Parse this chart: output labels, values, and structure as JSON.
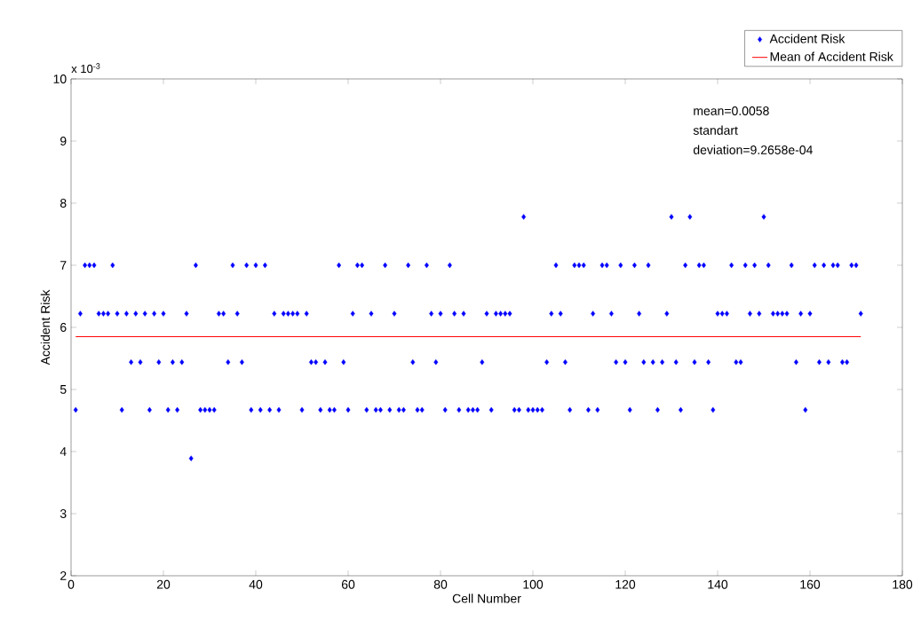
{
  "chart_data": {
    "type": "scatter",
    "xlabel": "Cell Number",
    "ylabel": "Accident Risk",
    "annotations": [
      "x 10$^{-3}$",
      "mean=0.0058",
      "standart",
      "deviation=9.2658e-04"
    ],
    "xlim": [
      0,
      180
    ],
    "xticks": [
      0,
      20,
      40,
      60,
      80,
      100,
      120,
      140,
      160,
      180
    ],
    "ylim": [
      2,
      10
    ],
    "yticks": [
      2,
      3,
      4,
      5,
      6,
      7,
      8,
      9,
      10
    ],
    "legend": "top right",
    "series": [
      {
        "name": "Accident Risk",
        "marker": "diamond",
        "color": "#0000ff",
        "x": [
          1,
          2,
          3,
          4,
          5,
          6,
          7,
          8,
          9,
          10,
          11,
          12,
          13,
          14,
          15,
          16,
          17,
          18,
          19,
          20,
          21,
          22,
          23,
          24,
          25,
          26,
          27,
          28,
          29,
          30,
          31,
          32,
          33,
          34,
          35,
          36,
          37,
          38,
          39,
          40,
          41,
          42,
          43,
          44,
          45,
          46,
          47,
          48,
          49,
          50,
          51,
          52,
          53,
          54,
          55,
          56,
          57,
          58,
          59,
          60,
          61,
          62,
          63,
          64,
          65,
          66,
          67,
          68,
          69,
          70,
          71,
          72,
          73,
          74,
          75,
          76,
          77,
          78,
          79,
          80,
          81,
          82,
          83,
          84,
          85,
          86,
          87,
          88,
          89,
          90,
          91,
          92,
          93,
          94,
          95,
          96,
          97,
          98,
          99,
          100,
          101,
          102,
          103,
          104,
          105,
          106,
          107,
          108,
          109,
          110,
          111,
          112,
          113,
          114,
          115,
          116,
          117,
          118,
          119,
          120,
          121,
          122,
          123,
          124,
          125,
          126,
          127,
          128,
          129,
          130,
          131,
          132,
          133,
          134,
          135,
          136,
          137,
          138,
          139,
          140,
          141,
          142,
          143,
          144,
          145,
          146,
          147,
          148,
          149,
          150,
          151,
          152,
          153,
          154,
          155,
          156,
          157,
          158,
          159,
          160,
          161,
          162,
          163,
          164,
          165,
          166,
          167,
          168,
          169,
          170,
          171
        ],
        "values": [
          4.67,
          6.22,
          7.0,
          7.0,
          7.0,
          6.22,
          6.22,
          6.22,
          7.0,
          6.22,
          4.67,
          6.22,
          5.44,
          6.22,
          5.44,
          6.22,
          4.67,
          6.22,
          5.44,
          6.22,
          4.67,
          5.44,
          4.67,
          5.44,
          6.22,
          3.89,
          7.0,
          4.67,
          4.67,
          4.67,
          4.67,
          6.22,
          6.22,
          5.44,
          7.0,
          6.22,
          5.44,
          7.0,
          4.67,
          7.0,
          4.67,
          7.0,
          4.67,
          6.22,
          4.67,
          6.22,
          6.22,
          6.22,
          6.22,
          4.67,
          6.22,
          5.44,
          5.44,
          4.67,
          5.44,
          4.67,
          4.67,
          7.0,
          5.44,
          4.67,
          6.22,
          7.0,
          7.0,
          4.67,
          6.22,
          4.67,
          4.67,
          7.0,
          4.67,
          6.22,
          4.67,
          4.67,
          7.0,
          5.44,
          4.67,
          4.67,
          7.0,
          6.22,
          5.44,
          6.22,
          4.67,
          7.0,
          6.22,
          4.67,
          6.22,
          4.67,
          4.67,
          4.67,
          5.44,
          6.22,
          4.67,
          6.22,
          6.22,
          6.22,
          6.22,
          4.67,
          4.67,
          7.78,
          4.67,
          4.67,
          4.67,
          4.67,
          5.44,
          6.22,
          7.0,
          6.22,
          5.44,
          4.67,
          7.0,
          7.0,
          7.0,
          4.67,
          6.22,
          4.67,
          7.0,
          7.0,
          6.22,
          5.44,
          7.0,
          5.44,
          4.67,
          7.0,
          6.22,
          5.44,
          7.0,
          5.44,
          4.67,
          5.44,
          6.22,
          7.78,
          5.44,
          4.67,
          7.0,
          7.78,
          5.44,
          7.0,
          7.0,
          5.44,
          4.67,
          6.22,
          6.22,
          6.22,
          7.0,
          5.44,
          5.44,
          7.0,
          6.22,
          7.0,
          6.22,
          7.78,
          7.0,
          6.22,
          6.22,
          6.22,
          6.22,
          7.0,
          5.44,
          6.22,
          4.67,
          6.22,
          7.0,
          5.44,
          7.0,
          5.44,
          7.0,
          7.0,
          5.44,
          5.44,
          7.0,
          7.0,
          6.22
        ]
      },
      {
        "name": "Mean of Accident Risk",
        "type": "line",
        "marker": "none",
        "color": "#ff0000",
        "x": [
          1,
          171
        ],
        "values": [
          5.85,
          5.85
        ]
      }
    ]
  }
}
